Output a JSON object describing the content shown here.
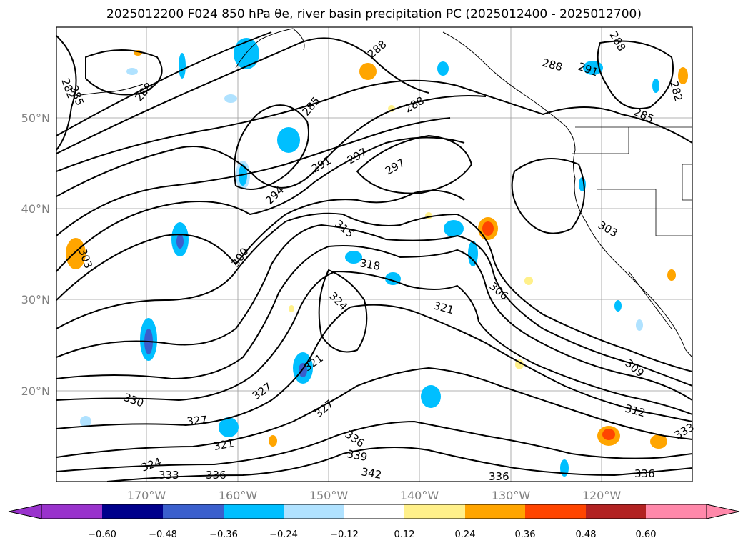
{
  "title": "2025012200 F024 850 hPa θe, river basin precipitation PC (2025012400 - 2025012700)",
  "axes": {
    "lon_ticks": [
      "170°W",
      "160°W",
      "150°W",
      "140°W",
      "130°W",
      "120°W"
    ],
    "lat_ticks": [
      "50°N",
      "40°N",
      "30°N",
      "20°N"
    ]
  },
  "contour_labels": [
    "282",
    "285",
    "288",
    "291",
    "294",
    "297",
    "300",
    "303",
    "306",
    "309",
    "312",
    "315",
    "318",
    "321",
    "324",
    "327",
    "330",
    "333",
    "336",
    "339",
    "342"
  ],
  "colorbar": {
    "ticks": [
      "−0.60",
      "−0.48",
      "−0.36",
      "−0.24",
      "−0.12",
      "0.12",
      "0.24",
      "0.36",
      "0.48",
      "0.60"
    ],
    "colors": [
      "#9932cc",
      "#00008b",
      "#3a5fcd",
      "#00bfff",
      "#b0e2ff",
      "#ffffff",
      "#fff08a",
      "#ffa500",
      "#ff4500",
      "#b22222",
      "#ff88aa"
    ]
  }
}
